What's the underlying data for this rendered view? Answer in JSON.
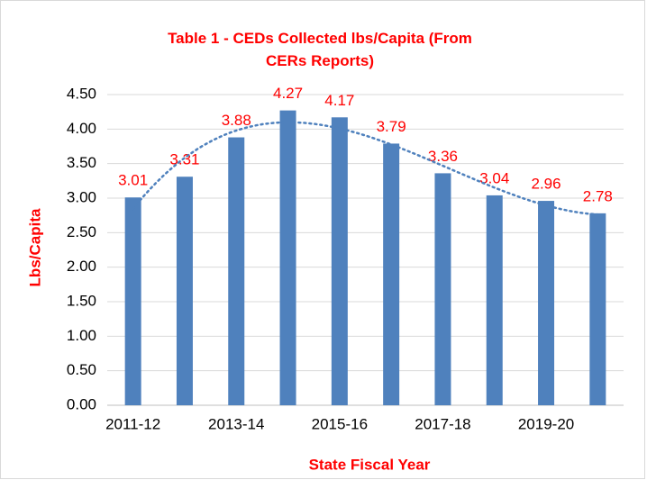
{
  "chart_data": {
    "type": "bar",
    "title": "Table 1 - CEDs Collected lbs/Capita (From CERs Reports)",
    "x_label": "State Fiscal Year",
    "y_label": "Lbs/Capita",
    "categories": [
      "2011-12",
      null,
      "2013-14",
      null,
      "2015-16",
      null,
      "2017-18",
      null,
      "2019-20",
      null
    ],
    "values": [
      3.01,
      3.31,
      3.88,
      4.27,
      4.17,
      3.79,
      3.36,
      3.04,
      2.96,
      2.78
    ],
    "color": "#4f81bd",
    "label_color": "#ff0000",
    "trendline": "polynomial",
    "trendline_order": 3,
    "trendline_color": "#4f81bd",
    "ylim": [
      0,
      4.5
    ],
    "yticks": [
      {
        "value": 0,
        "label": "0.00"
      },
      {
        "value": 0.5,
        "label": "0.50"
      },
      {
        "value": 1,
        "label": "1.00"
      },
      {
        "value": 1.5,
        "label": "1.50"
      },
      {
        "value": 2,
        "label": "2.00"
      },
      {
        "value": 2.5,
        "label": "2.50"
      },
      {
        "value": 3,
        "label": "3.00"
      },
      {
        "value": 3.5,
        "label": "3.50"
      },
      {
        "value": 4,
        "label": "4.00"
      },
      {
        "value": 4.5,
        "label": "4.50"
      }
    ],
    "grid": true
  }
}
